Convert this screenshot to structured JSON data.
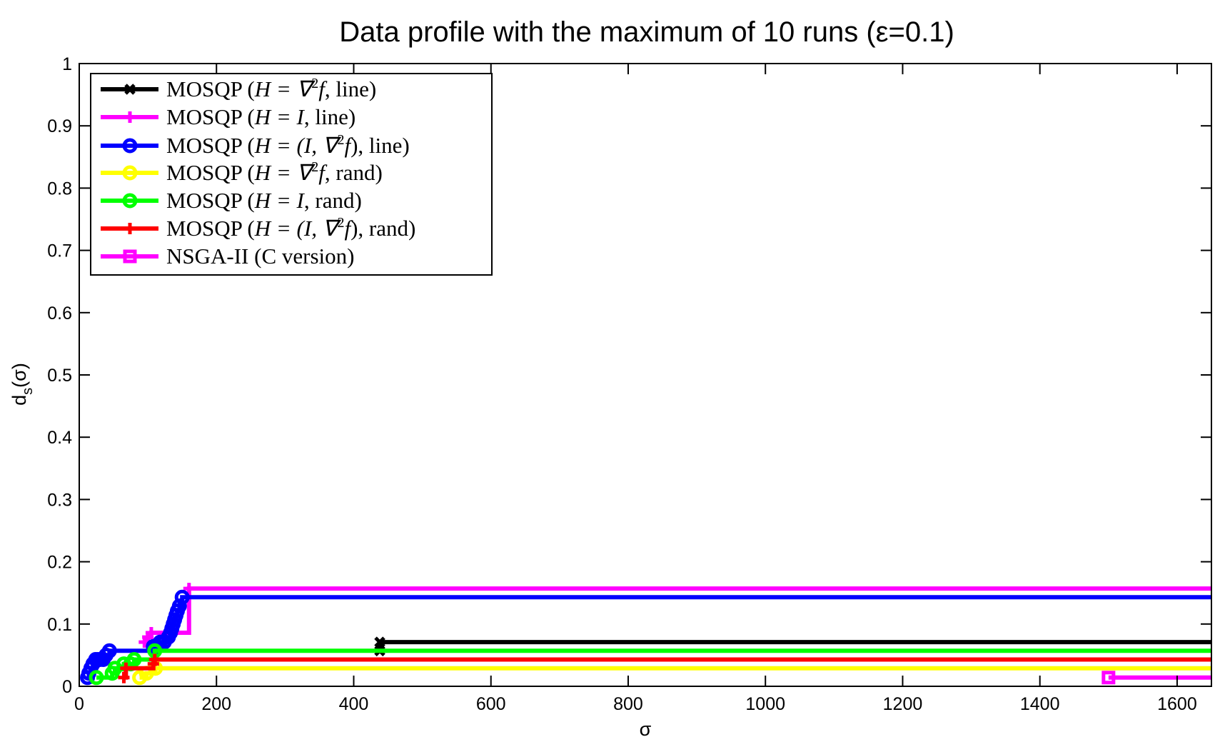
{
  "chart_data": {
    "type": "line",
    "title": "Data profile with the maximum of 10 runs (ε=0.1)",
    "xlabel": "σ",
    "ylabel_main": "d",
    "ylabel_sub": "s",
    "ylabel_arg": "(σ)",
    "xlim": [
      0,
      1650
    ],
    "ylim": [
      0,
      1
    ],
    "xticks": [
      0,
      200,
      400,
      600,
      800,
      1000,
      1200,
      1400,
      1600
    ],
    "yticks": [
      0,
      0.1,
      0.2,
      0.3,
      0.4,
      0.5,
      0.6,
      0.7,
      0.8,
      0.9,
      1
    ],
    "grid": false,
    "legend_position": "top-left",
    "series": [
      {
        "name": "MOSQP (H = ∇²f, line)",
        "color": "#000000",
        "marker": "x",
        "x": [
          438,
          438
        ],
        "y": [
          0.057,
          0.071
        ]
      },
      {
        "name": "MOSQP (H = I, line)",
        "color": "#ff00ff",
        "marker": "plus",
        "x": [
          95,
          100,
          105,
          160
        ],
        "y": [
          0.071,
          0.079,
          0.086,
          0.157
        ]
      },
      {
        "name": "MOSQP (H = (I,∇²f), line)",
        "color": "#0000ff",
        "marker": "circle",
        "x": [
          12,
          14,
          17,
          20,
          24,
          27,
          30,
          35,
          39,
          44,
          108,
          113,
          118,
          124,
          130,
          133,
          135,
          137,
          139,
          141,
          143,
          146,
          150
        ],
        "y": [
          0.014,
          0.021,
          0.029,
          0.036,
          0.043,
          0.043,
          0.043,
          0.043,
          0.05,
          0.057,
          0.064,
          0.064,
          0.071,
          0.071,
          0.079,
          0.086,
          0.093,
          0.1,
          0.107,
          0.114,
          0.121,
          0.129,
          0.143
        ]
      },
      {
        "name": "MOSQP (H = ∇²f, rand)",
        "color": "#ffff00",
        "marker": "circle",
        "x": [
          88,
          98,
          111
        ],
        "y": [
          0.014,
          0.021,
          0.029
        ]
      },
      {
        "name": "MOSQP (H = I, rand)",
        "color": "#00ff00",
        "marker": "circle",
        "x": [
          25,
          48,
          52,
          65,
          75,
          80,
          110
        ],
        "y": [
          0.014,
          0.021,
          0.029,
          0.036,
          0.036,
          0.043,
          0.057
        ]
      },
      {
        "name": "MOSQP (H = (I,∇²f), rand)",
        "color": "#ff0000",
        "marker": "plus",
        "x": [
          65,
          68,
          108,
          110
        ],
        "y": [
          0.014,
          0.029,
          0.036,
          0.043
        ]
      },
      {
        "name": "NSGA-II (C version)",
        "color": "#ff00ff",
        "marker": "square",
        "x": [
          1500
        ],
        "y": [
          0.014
        ]
      }
    ]
  },
  "legend": {
    "entries": [
      {
        "prefix": "MOSQP (",
        "math": "H = ∇",
        "sup": "2",
        "tail_italic": "f",
        "tail": ", line)"
      },
      {
        "prefix": "MOSQP (",
        "math": "H = I",
        "sup": "",
        "tail_italic": "",
        "tail": ", line)"
      },
      {
        "prefix": "MOSQP (",
        "math": "H = (I, ∇",
        "sup": "2",
        "tail_italic": "f",
        "tail": "), line)"
      },
      {
        "prefix": "MOSQP (",
        "math": "H = ∇",
        "sup": "2",
        "tail_italic": "f",
        "tail": ", rand)"
      },
      {
        "prefix": "MOSQP (",
        "math": "H = I",
        "sup": "",
        "tail_italic": "",
        "tail": ", rand)"
      },
      {
        "prefix": "MOSQP (",
        "math": "H = (I, ∇",
        "sup": "2",
        "tail_italic": "f",
        "tail": "), rand)"
      },
      {
        "prefix": "NSGA-II (C version)",
        "math": "",
        "sup": "",
        "tail_italic": "",
        "tail": ""
      }
    ]
  }
}
